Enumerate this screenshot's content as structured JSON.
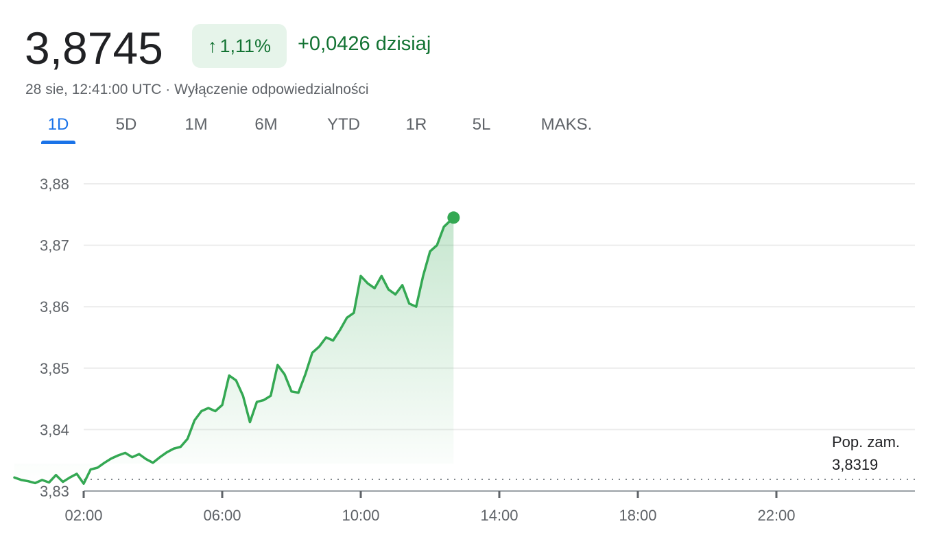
{
  "quote": {
    "price": "3,8745",
    "change_percent": "1,11%",
    "change_arrow": "↑",
    "change_abs": "+0,0426",
    "change_suffix": "dzisiaj",
    "timestamp": "28 sie, 12:41:00 UTC",
    "separator": "·",
    "disclaimer": "Wyłączenie odpowiedzialności"
  },
  "colors": {
    "up": "#137333",
    "line": "#34a853",
    "accent": "#1a73e8"
  },
  "tabs": [
    {
      "label": "1D",
      "active": true
    },
    {
      "label": "5D",
      "active": false
    },
    {
      "label": "1M",
      "active": false
    },
    {
      "label": "6M",
      "active": false
    },
    {
      "label": "YTD",
      "active": false
    },
    {
      "label": "1R",
      "active": false
    },
    {
      "label": "5L",
      "active": false
    },
    {
      "label": "MAKS.",
      "active": false
    }
  ],
  "chart_data": {
    "type": "line",
    "ylim": [
      3.83,
      3.88
    ],
    "y_ticks": [
      {
        "value": 3.88,
        "label": "3,88"
      },
      {
        "value": 3.87,
        "label": "3,87"
      },
      {
        "value": 3.86,
        "label": "3,86"
      },
      {
        "value": 3.85,
        "label": "3,85"
      },
      {
        "value": 3.84,
        "label": "3,84"
      },
      {
        "value": 3.83,
        "label": "3,83"
      }
    ],
    "x_ticks": [
      {
        "hour": 2,
        "label": "02:00"
      },
      {
        "hour": 6,
        "label": "06:00"
      },
      {
        "hour": 10,
        "label": "10:00"
      },
      {
        "hour": 14,
        "label": "14:00"
      },
      {
        "hour": 18,
        "label": "18:00"
      },
      {
        "hour": 22,
        "label": "22:00"
      }
    ],
    "xlim": [
      0,
      24
    ],
    "previous_close": {
      "label": "Pop. zam.",
      "value": 3.8319,
      "value_label": "3,8319"
    },
    "series": [
      {
        "x": [
          0.0,
          0.2,
          0.4,
          0.6,
          0.8,
          1.0,
          1.2,
          1.4,
          1.6,
          1.8,
          2.0,
          2.2,
          2.4,
          2.6,
          2.8,
          3.0,
          3.2,
          3.4,
          3.6,
          3.8,
          4.0,
          4.2,
          4.4,
          4.6,
          4.8,
          5.0,
          5.2,
          5.4,
          5.6,
          5.8,
          6.0,
          6.2,
          6.4,
          6.6,
          6.8,
          7.0,
          7.2,
          7.4,
          7.6,
          7.8,
          8.0,
          8.2,
          8.4,
          8.6,
          8.8,
          9.0,
          9.2,
          9.4,
          9.6,
          9.8,
          10.0,
          10.2,
          10.4,
          10.6,
          10.8,
          11.0,
          11.2,
          11.4,
          11.6,
          11.8,
          12.0,
          12.2,
          12.4,
          12.68
        ],
        "y": [
          3.8322,
          3.8318,
          3.8316,
          3.8313,
          3.8318,
          3.8314,
          3.8326,
          3.8315,
          3.8322,
          3.8328,
          3.8312,
          3.8335,
          3.8338,
          3.8346,
          3.8353,
          3.8358,
          3.8362,
          3.8355,
          3.836,
          3.8352,
          3.8346,
          3.8355,
          3.8363,
          3.8369,
          3.8372,
          3.8385,
          3.8415,
          3.843,
          3.8435,
          3.843,
          3.844,
          3.8488,
          3.848,
          3.8455,
          3.8412,
          3.8445,
          3.8448,
          3.8455,
          3.8505,
          3.849,
          3.8462,
          3.846,
          3.849,
          3.8525,
          3.8535,
          3.855,
          3.8545,
          3.8562,
          3.8582,
          3.859,
          3.865,
          3.8638,
          3.863,
          3.865,
          3.8628,
          3.862,
          3.8635,
          3.8605,
          3.86,
          3.865,
          3.869,
          3.87,
          3.873,
          3.8745
        ]
      }
    ]
  }
}
